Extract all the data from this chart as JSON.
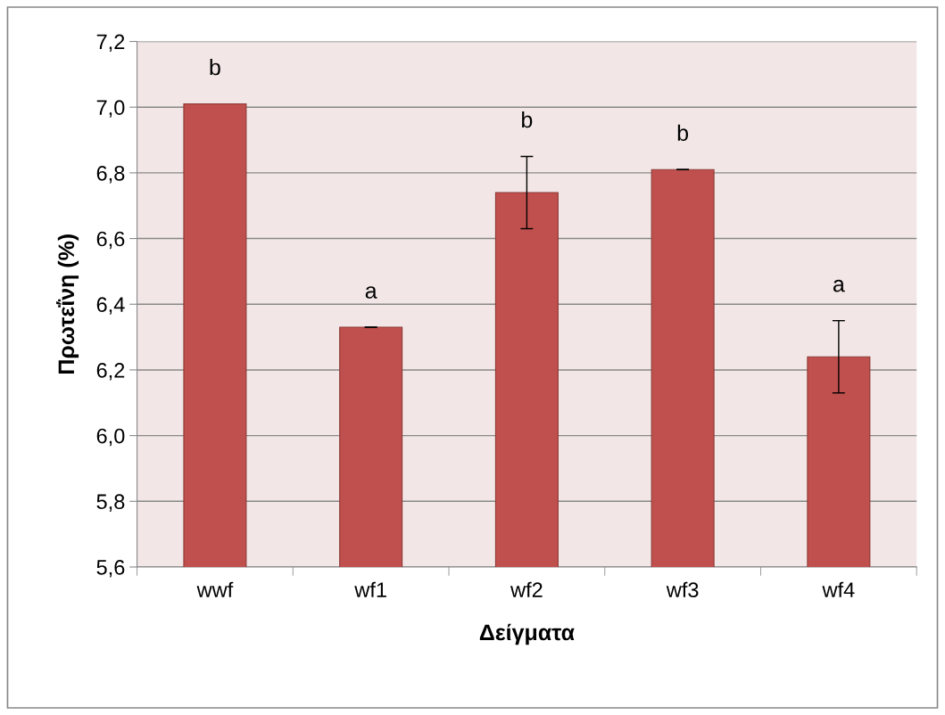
{
  "chart_data": {
    "type": "bar",
    "xlabel": "Δείγματα",
    "ylabel": "Πρωτεΐνη (%)",
    "categories": [
      "wwf",
      "wf1",
      "wf2",
      "wf3",
      "wf4"
    ],
    "values": [
      7.01,
      6.33,
      6.74,
      6.81,
      6.24
    ],
    "errors": [
      null,
      0,
      0.11,
      0,
      0.11
    ],
    "color": "#c0504d",
    "ylim": [
      5.6,
      7.2
    ],
    "yticks": [
      {
        "value": 5.6,
        "label": "5,6"
      },
      {
        "value": 5.8,
        "label": "5,8"
      },
      {
        "value": 6.0,
        "label": "6,0"
      },
      {
        "value": 6.2,
        "label": "6,2"
      },
      {
        "value": 6.4,
        "label": "6,4"
      },
      {
        "value": 6.6,
        "label": "6,6"
      },
      {
        "value": 6.8,
        "label": "6,8"
      },
      {
        "value": 7.0,
        "label": "7,0"
      },
      {
        "value": 7.2,
        "label": "7,2"
      }
    ],
    "grid": "y",
    "annotations": [
      "b",
      "a",
      "b",
      "b",
      "a"
    ]
  }
}
